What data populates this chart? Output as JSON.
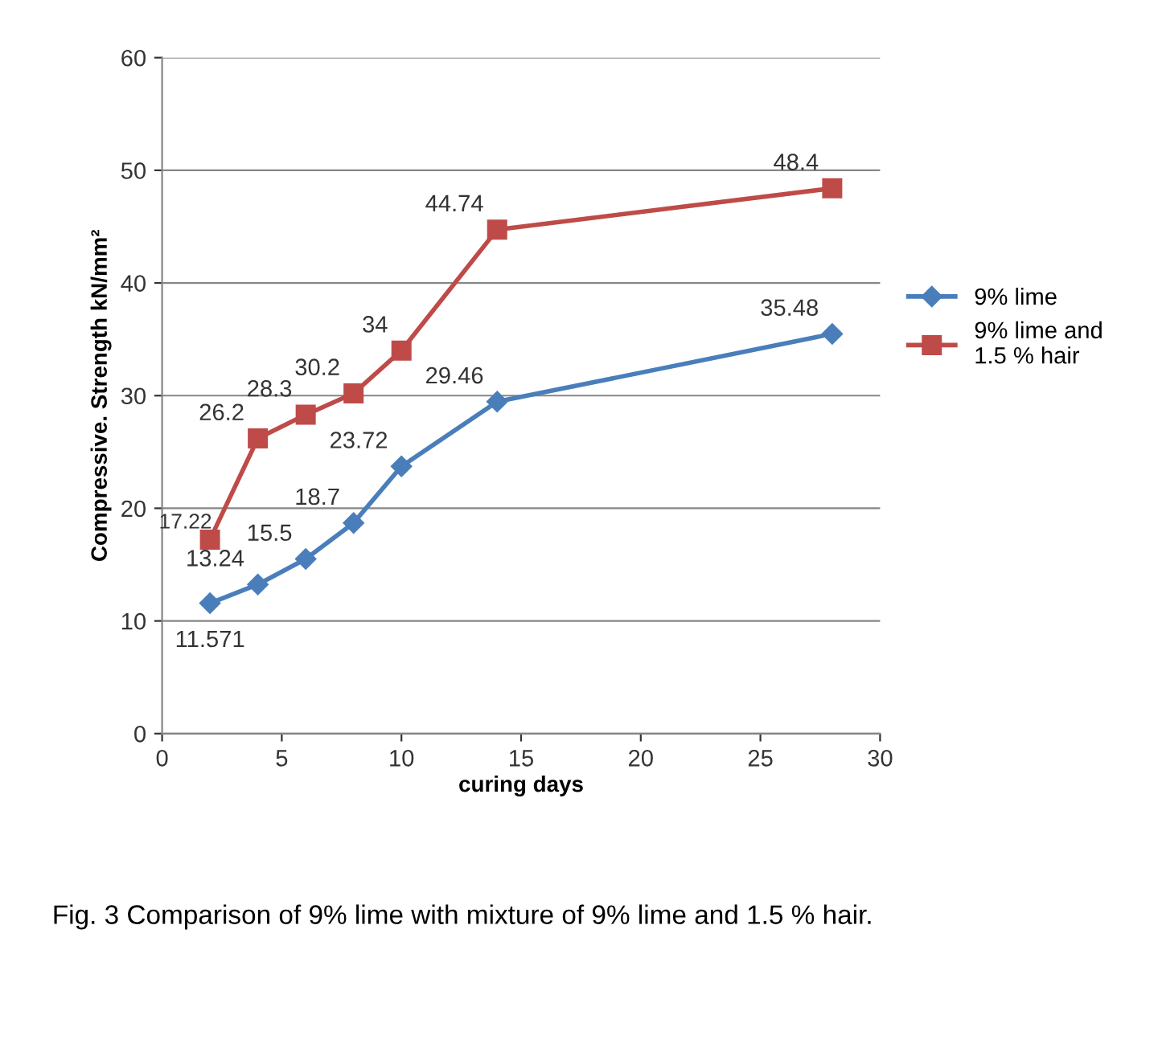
{
  "chart_data": {
    "type": "line",
    "xlabel": "curing days",
    "ylabel": "Compressive. Strength kN/mm²",
    "x": [
      2,
      4,
      6,
      8,
      10,
      14,
      28
    ],
    "series": [
      {
        "name": "9% lime",
        "color": "#4a7ebb",
        "marker": "diamond",
        "values": [
          11.571,
          13.24,
          15.5,
          18.7,
          23.72,
          29.46,
          35.48
        ]
      },
      {
        "name": "9% lime and\n1.5 % hair",
        "color": "#be4b48",
        "marker": "square",
        "values": [
          17.22,
          26.2,
          28.3,
          30.2,
          34,
          44.74,
          48.4
        ]
      }
    ],
    "data_labels": true,
    "xlim": [
      0,
      30
    ],
    "xticks": [
      0,
      5,
      10,
      15,
      20,
      25,
      30
    ],
    "ylim": [
      0,
      60
    ],
    "yticks": [
      0,
      10,
      20,
      30,
      40,
      50,
      60
    ],
    "grid": "y",
    "legend": "right",
    "line_style": "solid",
    "annotations": [
      "Fig. 3 Comparison of 9% lime with mixture of 9% lime and 1.5 % hair."
    ]
  }
}
